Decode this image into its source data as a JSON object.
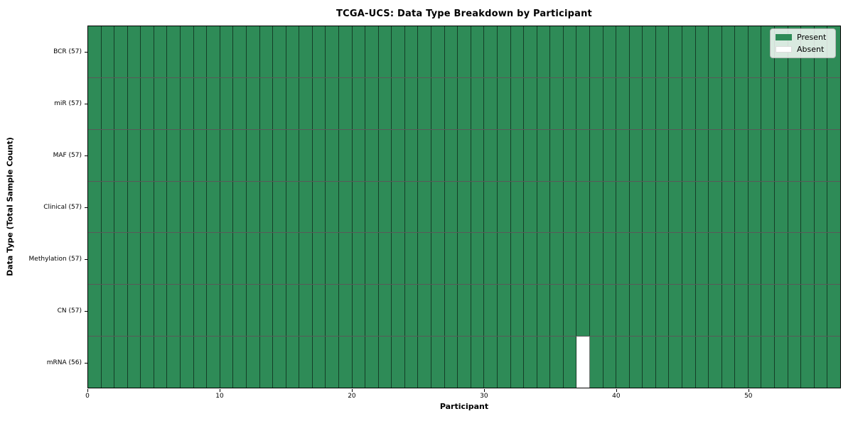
{
  "title": "TCGA-UCS: Data Type Breakdown by Participant",
  "axes": {
    "xlabel": "Participant",
    "ylabel": "Data Type (Total Sample Count)"
  },
  "legend": {
    "present_label": "Present",
    "absent_label": "Absent"
  },
  "colors": {
    "present": "#2e8b57",
    "absent": "#ffffff",
    "cell_border": "rgba(0,0,0,0.55)"
  },
  "chart_data": {
    "type": "heatmap",
    "title": "TCGA-UCS: Data Type Breakdown by Participant",
    "xlabel": "Participant",
    "ylabel": "Data Type (Total Sample Count)",
    "n_participants": 57,
    "xlim": [
      0,
      57
    ],
    "x_ticks": [
      0,
      10,
      20,
      30,
      40,
      50
    ],
    "legend_entries": [
      {
        "label": "Present",
        "color": "#2e8b57"
      },
      {
        "label": "Absent",
        "color": "#ffffff"
      }
    ],
    "legend_position": "upper right",
    "rows": [
      {
        "label": "BCR (57)",
        "data_type": "BCR",
        "sample_count": 57,
        "absent_participants": []
      },
      {
        "label": "miR (57)",
        "data_type": "miR",
        "sample_count": 57,
        "absent_participants": []
      },
      {
        "label": "MAF (57)",
        "data_type": "MAF",
        "sample_count": 57,
        "absent_participants": []
      },
      {
        "label": "Clinical (57)",
        "data_type": "Clinical",
        "sample_count": 57,
        "absent_participants": []
      },
      {
        "label": "Methylation (57)",
        "data_type": "Methylation",
        "sample_count": 57,
        "absent_participants": []
      },
      {
        "label": "CN (57)",
        "data_type": "CN",
        "sample_count": 57,
        "absent_participants": []
      },
      {
        "label": "mRNA (56)",
        "data_type": "mRNA",
        "sample_count": 56,
        "absent_participants": [
          37
        ]
      }
    ]
  }
}
